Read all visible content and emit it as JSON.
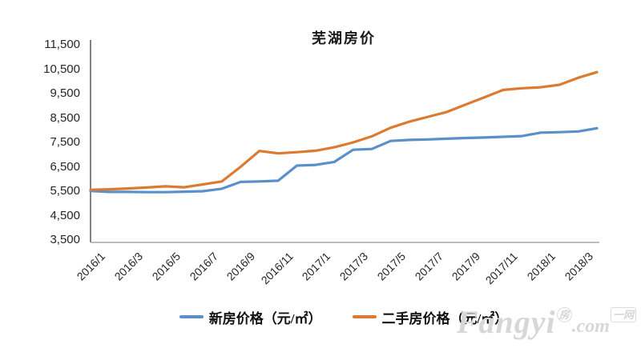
{
  "page": {
    "background": "#ffffff"
  },
  "chart_data": {
    "type": "line",
    "title": "芜湖房价",
    "categories": [
      "2016/1",
      "2016/2",
      "2016/3",
      "2016/4",
      "2016/5",
      "2016/6",
      "2016/7",
      "2016/8",
      "2016/9",
      "2016/10",
      "2016/11",
      "2016/12",
      "2017/1",
      "2017/2",
      "2017/3",
      "2017/4",
      "2017/5",
      "2017/6",
      "2017/7",
      "2017/8",
      "2017/9",
      "2017/10",
      "2017/11",
      "2017/12",
      "2018/1",
      "2018/2",
      "2018/3",
      "2018/4"
    ],
    "x_tick_indices": [
      0,
      2,
      4,
      6,
      8,
      10,
      12,
      14,
      16,
      18,
      20,
      22,
      24,
      26
    ],
    "x_tick_labels": [
      "2016/1",
      "2016/3",
      "2016/5",
      "2016/7",
      "2016/9",
      "2016/11",
      "2017/1",
      "2017/3",
      "2017/5",
      "2017/7",
      "2017/9",
      "2017/11",
      "2018/1",
      "2018/3"
    ],
    "series": [
      {
        "name": "新房价格（元/㎡）",
        "color": "#5a90c8",
        "values": [
          5510,
          5470,
          5470,
          5460,
          5460,
          5480,
          5500,
          5600,
          5880,
          5900,
          5930,
          6550,
          6580,
          6700,
          7200,
          7230,
          7560,
          7600,
          7620,
          7650,
          7680,
          7700,
          7730,
          7760,
          7900,
          7920,
          7950,
          8080
        ]
      },
      {
        "name": "二手房价格（元/㎡）",
        "color": "#db7b32",
        "values": [
          5560,
          5580,
          5610,
          5650,
          5700,
          5660,
          5780,
          5900,
          6500,
          7150,
          7050,
          7100,
          7160,
          7300,
          7500,
          7750,
          8100,
          8350,
          8550,
          8750,
          9050,
          9350,
          9650,
          9720,
          9760,
          9860,
          10150,
          10380
        ]
      }
    ],
    "ylim": [
      3500,
      11500
    ],
    "y_ticks": [
      3500,
      4500,
      5500,
      6500,
      7500,
      8500,
      9500,
      10500,
      11500
    ],
    "y_tick_labels": [
      "3,500",
      "4,500",
      "5,500",
      "6,500",
      "7,500",
      "8,500",
      "9,500",
      "10,500",
      "11,500"
    ],
    "grid": false,
    "legend_position": "bottom",
    "axis_colors": {
      "y_axis_line": "#4d4d4d",
      "x_axis_line": "#b3b3b3"
    }
  },
  "watermark": {
    "text_main": "Fangyi",
    "text_cn1": "房",
    "text_dot": ".com",
    "text_cn2": "一网"
  }
}
